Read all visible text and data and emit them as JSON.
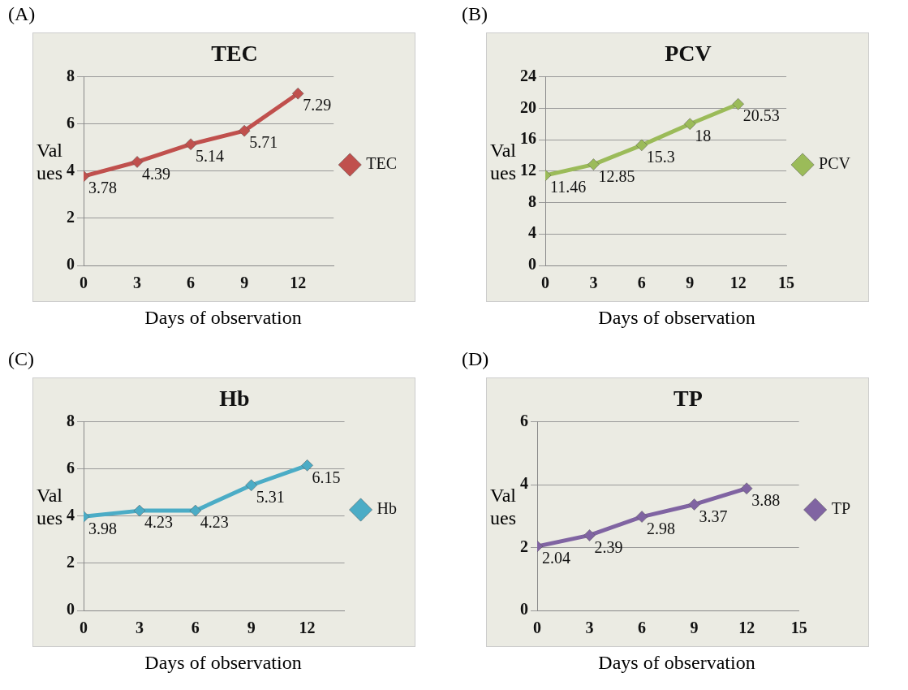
{
  "chart_data": [
    {
      "type": "line",
      "title": "TEC",
      "xlabel": "Days of observation",
      "ylabel": "Values",
      "annotations": [
        "(A)"
      ],
      "x": [
        0,
        3,
        6,
        9,
        12
      ],
      "series": [
        {
          "name": "TEC",
          "color": "#c0504d",
          "values": [
            3.78,
            4.39,
            5.14,
            5.71,
            7.29
          ]
        }
      ],
      "xlim": [
        0,
        14
      ],
      "xticks": [
        0,
        3,
        6,
        9,
        12
      ],
      "ylim": [
        0,
        8
      ],
      "yticks": [
        0,
        2,
        4,
        6,
        8
      ],
      "grid": "y",
      "legend": "right",
      "marker": "diamond",
      "data_labels": true
    },
    {
      "type": "line",
      "title": "PCV",
      "xlabel": "Days of observation",
      "ylabel": "Values",
      "annotations": [
        "(B)"
      ],
      "x": [
        0,
        3,
        6,
        9,
        12
      ],
      "series": [
        {
          "name": "PCV",
          "color": "#9bbb59",
          "values": [
            11.46,
            12.85,
            15.3,
            18,
            20.53
          ]
        }
      ],
      "xlim": [
        0,
        15
      ],
      "xticks": [
        0,
        3,
        6,
        9,
        12,
        15
      ],
      "ylim": [
        0,
        24
      ],
      "yticks": [
        0,
        4,
        8,
        12,
        16,
        20,
        24
      ],
      "grid": "y",
      "legend": "right",
      "marker": "diamond",
      "data_labels": true
    },
    {
      "type": "line",
      "title": "Hb",
      "xlabel": "Days of observation",
      "ylabel": "Values",
      "annotations": [
        "(C)"
      ],
      "x": [
        0,
        3,
        6,
        9,
        12
      ],
      "series": [
        {
          "name": "Hb",
          "color": "#4bacc6",
          "values": [
            3.98,
            4.23,
            4.23,
            5.31,
            6.15
          ]
        }
      ],
      "xlim": [
        0,
        14
      ],
      "xticks": [
        0,
        3,
        6,
        9,
        12
      ],
      "ylim": [
        0,
        8
      ],
      "yticks": [
        0,
        2,
        4,
        6,
        8
      ],
      "grid": "y",
      "legend": "right",
      "marker": "diamond",
      "data_labels": true
    },
    {
      "type": "line",
      "title": "TP",
      "xlabel": "Days of observation",
      "ylabel": "Values",
      "annotations": [
        "(D)"
      ],
      "x": [
        0,
        3,
        6,
        9,
        12
      ],
      "series": [
        {
          "name": "TP",
          "color": "#8064a2",
          "values": [
            2.04,
            2.39,
            2.98,
            3.37,
            3.88
          ]
        }
      ],
      "xlim": [
        0,
        15
      ],
      "xticks": [
        0,
        3,
        6,
        9,
        12,
        15
      ],
      "ylim": [
        0,
        6
      ],
      "yticks": [
        0,
        2,
        4,
        6
      ],
      "grid": "y",
      "legend": "right",
      "marker": "diamond",
      "data_labels": true
    }
  ]
}
